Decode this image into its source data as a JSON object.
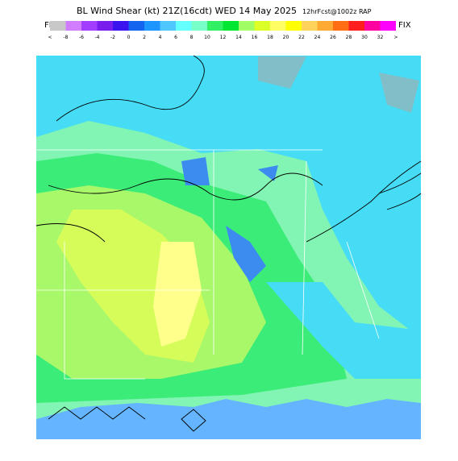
{
  "header": {
    "title": "BL Wind Shear (kt) 21Z(16cdt) WED 14 May 2025",
    "subtitle": "12hrFcst@1002z RAP",
    "left_tag": "FIX",
    "right_tag": "FIX"
  },
  "colorbar": {
    "labels": [
      "<",
      "-8",
      "-6",
      "-4",
      "-2",
      "0",
      "2",
      "4",
      "6",
      "8",
      "10",
      "12",
      "14",
      "16",
      "18",
      "20",
      "22",
      "24",
      "26",
      "28",
      "30",
      "32",
      ">"
    ],
    "colors": [
      "#c8c8c8",
      "#d27cff",
      "#a23cff",
      "#7a1ef0",
      "#3c14f0",
      "#1464f0",
      "#1e96ff",
      "#50c8ff",
      "#64ffff",
      "#78ffc8",
      "#32f064",
      "#00e632",
      "#a0ff64",
      "#dcff28",
      "#ffff64",
      "#ffff00",
      "#ffd25a",
      "#ffaa32",
      "#ff6e14",
      "#ff1e1e",
      "#ff00a0",
      "#ff00ff"
    ]
  }
}
